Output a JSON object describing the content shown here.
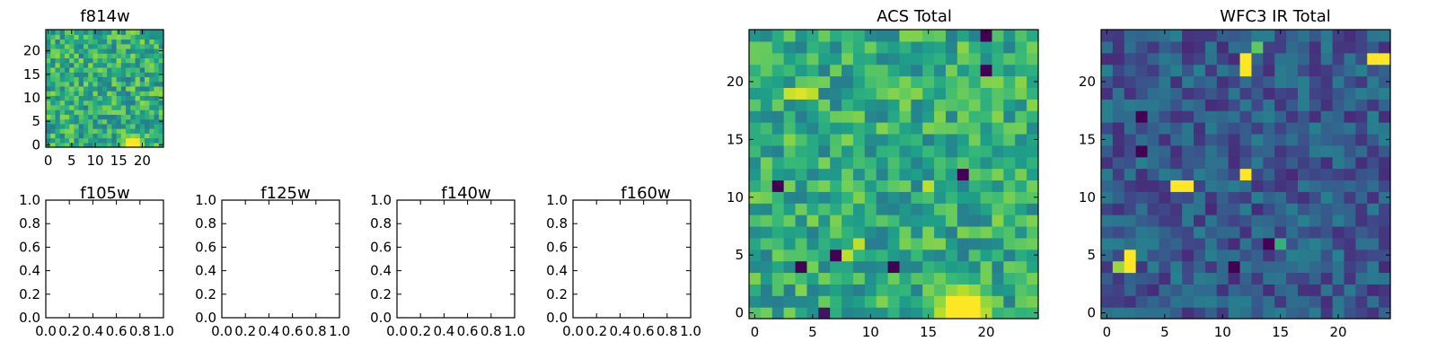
{
  "chart_data": [
    {
      "id": "f814w",
      "type": "heatmap",
      "title": "f814w",
      "shape": [
        25,
        25
      ],
      "xlim": [
        -0.5,
        24.5
      ],
      "ylim": [
        -0.5,
        24.5
      ],
      "xticks": [
        0,
        5,
        10,
        15,
        20
      ],
      "yticks": [
        0,
        5,
        10,
        15,
        20
      ],
      "colormap": "viridis",
      "value_range": [
        0,
        1
      ],
      "background_level": 0.62,
      "noise_amplitude": 0.22,
      "bright_source": {
        "x": 18,
        "y": 0,
        "peak": 1.0,
        "width": 2.5
      },
      "notes": "Noisy cutout; bright blob near x≈18, y≈0"
    },
    {
      "id": "f105w",
      "type": "empty",
      "title": "f105w",
      "xlim": [
        0,
        1
      ],
      "ylim": [
        0,
        1
      ],
      "xticks": [
        "0.0",
        "0.2",
        "0.4",
        "0.6",
        "0.8",
        "1.0"
      ],
      "yticks": [
        "0.0",
        "0.2",
        "0.4",
        "0.6",
        "0.8",
        "1.0"
      ]
    },
    {
      "id": "f125w",
      "type": "empty",
      "title": "f125w",
      "xlim": [
        0,
        1
      ],
      "ylim": [
        0,
        1
      ],
      "xticks": [
        "0.0",
        "0.2",
        "0.4",
        "0.6",
        "0.8",
        "1.0"
      ],
      "yticks": [
        "0.0",
        "0.2",
        "0.4",
        "0.6",
        "0.8",
        "1.0"
      ]
    },
    {
      "id": "f140w",
      "type": "empty",
      "title": "f140w",
      "xlim": [
        0,
        1
      ],
      "ylim": [
        0,
        1
      ],
      "xticks": [
        "0.0",
        "0.2",
        "0.4",
        "0.6",
        "0.8",
        "1.0"
      ],
      "yticks": [
        "0.0",
        "0.2",
        "0.4",
        "0.6",
        "0.8",
        "1.0"
      ]
    },
    {
      "id": "f160w",
      "type": "empty",
      "title": "f160w",
      "xlim": [
        0,
        1
      ],
      "ylim": [
        0,
        1
      ],
      "xticks": [
        "0.0",
        "0.2",
        "0.4",
        "0.6",
        "0.8",
        "1.0"
      ],
      "yticks": [
        "0.0",
        "0.2",
        "0.4",
        "0.6",
        "0.8",
        "1.0"
      ]
    },
    {
      "id": "acs-total",
      "type": "heatmap",
      "title": "ACS Total",
      "shape": [
        25,
        25
      ],
      "xlim": [
        -0.5,
        24.5
      ],
      "ylim": [
        -0.5,
        24.5
      ],
      "xticks": [
        0,
        5,
        10,
        15,
        20
      ],
      "yticks": [
        0,
        5,
        10,
        15,
        20
      ],
      "colormap": "viridis",
      "value_range": [
        0,
        1
      ],
      "background_level": 0.62,
      "noise_amplitude": 0.2,
      "bright_source": {
        "x": 18,
        "y": 0,
        "peak": 1.0,
        "width": 2.8
      },
      "hot_pixels": [
        {
          "x": 20,
          "y": 24,
          "value": 0.0
        },
        {
          "x": 20,
          "y": 21,
          "value": 0.0
        },
        {
          "x": 18,
          "y": 12,
          "value": 0.0
        },
        {
          "x": 2,
          "y": 11,
          "value": 0.0
        },
        {
          "x": 7,
          "y": 5,
          "value": 0.0
        },
        {
          "x": 12,
          "y": 4,
          "value": 0.0
        },
        {
          "x": 4,
          "y": 4,
          "value": 0.0
        },
        {
          "x": 6,
          "y": 0,
          "value": 0.05
        },
        {
          "x": 3,
          "y": 19,
          "value": 0.92
        },
        {
          "x": 4,
          "y": 19,
          "value": 0.95
        },
        {
          "x": 5,
          "y": 19,
          "value": 0.9
        },
        {
          "x": 9,
          "y": 6,
          "value": 0.9
        },
        {
          "x": 8,
          "y": 5,
          "value": 0.9
        },
        {
          "x": 15,
          "y": 11,
          "value": 0.9
        }
      ]
    },
    {
      "id": "wfc3-ir-total",
      "type": "heatmap",
      "title": "WFC3 IR Total",
      "shape": [
        25,
        25
      ],
      "xlim": [
        -0.5,
        24.5
      ],
      "ylim": [
        -0.5,
        24.5
      ],
      "xticks": [
        0,
        5,
        10,
        15,
        20
      ],
      "yticks": [
        0,
        5,
        10,
        15,
        20
      ],
      "colormap": "viridis",
      "value_range": [
        0,
        1
      ],
      "background_level": 0.28,
      "noise_amplitude": 0.16,
      "hot_pixels": [
        {
          "x": 12,
          "y": 22,
          "value": 1.0
        },
        {
          "x": 12,
          "y": 21,
          "value": 1.0
        },
        {
          "x": 23,
          "y": 22,
          "value": 1.0
        },
        {
          "x": 24,
          "y": 22,
          "value": 1.0
        },
        {
          "x": 12,
          "y": 12,
          "value": 1.0
        },
        {
          "x": 6,
          "y": 11,
          "value": 1.0
        },
        {
          "x": 7,
          "y": 11,
          "value": 1.0
        },
        {
          "x": 2,
          "y": 4,
          "value": 1.0
        },
        {
          "x": 2,
          "y": 5,
          "value": 1.0
        },
        {
          "x": 1,
          "y": 4,
          "value": 0.85
        },
        {
          "x": 3,
          "y": 17,
          "value": 0.0
        },
        {
          "x": 3,
          "y": 14,
          "value": 0.0
        },
        {
          "x": 14,
          "y": 6,
          "value": 0.0
        },
        {
          "x": 11,
          "y": 4,
          "value": 0.0
        },
        {
          "x": 15,
          "y": 6,
          "value": 0.65
        },
        {
          "x": 13,
          "y": 23,
          "value": 0.75
        }
      ]
    }
  ]
}
